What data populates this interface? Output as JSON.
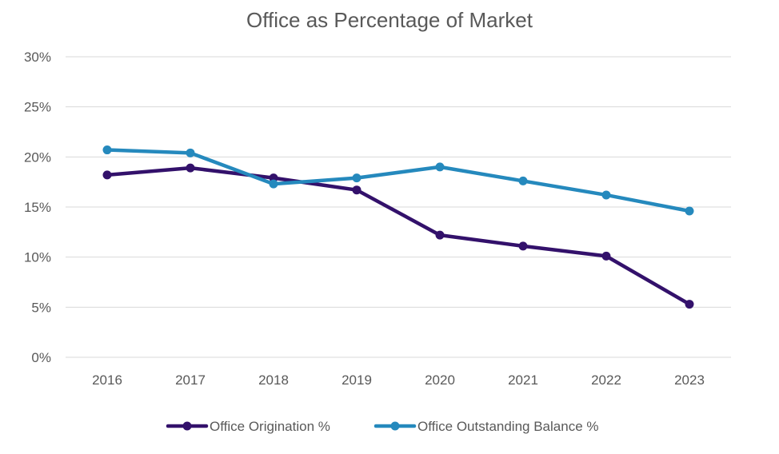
{
  "chart_data": {
    "type": "line",
    "title": "Office as Percentage of Market",
    "categories": [
      "2016",
      "2017",
      "2018",
      "2019",
      "2020",
      "2021",
      "2022",
      "2023"
    ],
    "ylim": [
      0,
      30
    ],
    "yticks": [
      0,
      5,
      10,
      15,
      20,
      25,
      30
    ],
    "ytick_labels": [
      "0%",
      "5%",
      "10%",
      "15%",
      "20%",
      "25%",
      "30%"
    ],
    "grid": true,
    "legend": "bottom",
    "series": [
      {
        "name": "Office Origination %",
        "color": "#33116b",
        "values": [
          18.2,
          18.9,
          17.9,
          16.7,
          12.2,
          11.1,
          10.1,
          5.3
        ]
      },
      {
        "name": "Office Outstanding Balance %",
        "color": "#2589bd",
        "values": [
          20.7,
          20.4,
          17.3,
          17.9,
          19.0,
          17.6,
          16.2,
          14.6
        ]
      }
    ]
  }
}
